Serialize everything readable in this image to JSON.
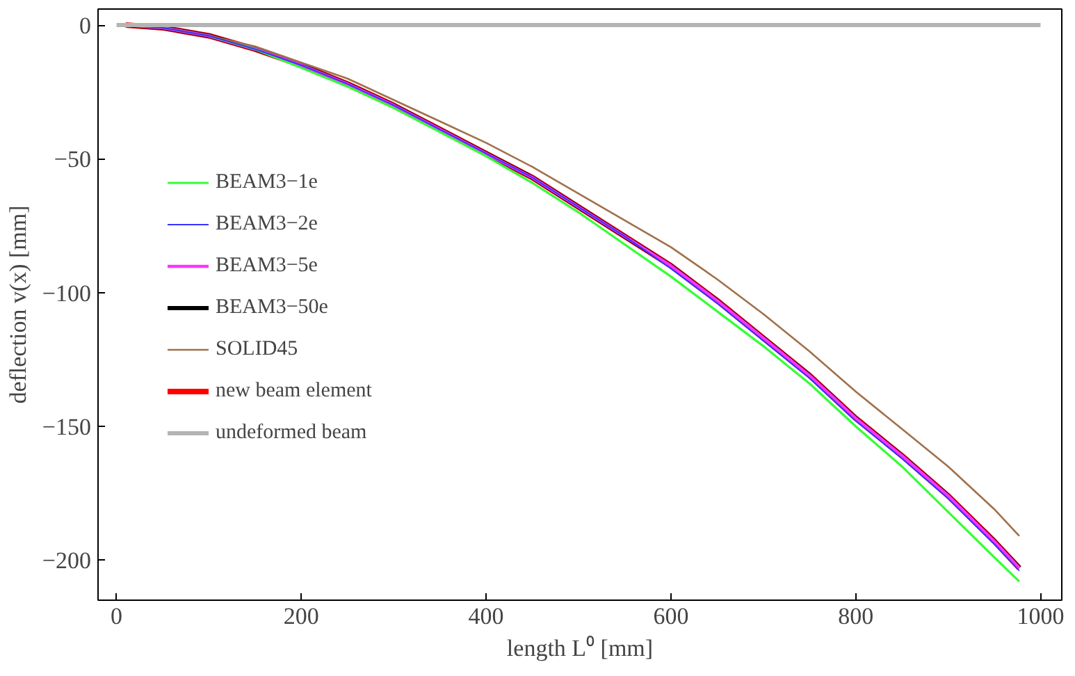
{
  "chart_data": {
    "type": "line",
    "xlabel": "length L⁰ [mm]",
    "ylabel": "deflection v(x) [mm]",
    "x": [
      10,
      50,
      100,
      150,
      200,
      250,
      300,
      350,
      400,
      450,
      500,
      550,
      600,
      650,
      700,
      750,
      800,
      850,
      900,
      950,
      977
    ],
    "series": [
      {
        "name": "BEAM3−1e",
        "color": "#33ff33",
        "values": [
          null,
          null,
          -4,
          -9,
          -16,
          -23,
          -31,
          -40,
          -49,
          -59,
          -70,
          -82,
          -94,
          -107,
          -120,
          -134,
          -150,
          -165,
          -182,
          -199,
          -208
        ]
      },
      {
        "name": "BEAM3−2e",
        "color": "#3333ff",
        "values": [
          0,
          -1,
          -4,
          -9,
          -15,
          -22,
          -30,
          -39,
          -48,
          -57,
          -68,
          -79,
          -91,
          -104,
          -118,
          -132,
          -148,
          -162,
          -177,
          -194,
          -204
        ]
      },
      {
        "name": "BEAM3−5e",
        "color": "#ff33ff",
        "values": [
          0,
          -1,
          -4,
          -9,
          -15,
          -22,
          -30,
          -39,
          -48,
          -57,
          -68,
          -79,
          -90,
          -103,
          -117,
          -131,
          -147,
          -161,
          -176,
          -193,
          -203
        ]
      },
      {
        "name": "BEAM3−50e",
        "color": "#000000",
        "values": [
          0,
          -1,
          -4,
          -9,
          -15,
          -22,
          -30,
          -39,
          -48,
          -57,
          -68,
          -79,
          -90,
          -103,
          -117,
          -131,
          -147,
          -161,
          -176,
          -193,
          -203
        ]
      },
      {
        "name": "SOLID45",
        "color": "#a0704a",
        "values": [
          0,
          -1,
          -4,
          -8,
          -14,
          -20,
          -28,
          -36,
          -44,
          -53,
          -63,
          -73,
          -83,
          -95,
          -108,
          -122,
          -137,
          -151,
          -165,
          -181,
          -191
        ]
      },
      {
        "name": "new beam element",
        "color": "#ff0000",
        "values": [
          0,
          -1,
          -4,
          -9,
          -15,
          -22,
          -30,
          -39,
          -48,
          -57,
          -68,
          -79,
          -90,
          -103,
          -117,
          -131,
          -147,
          -161,
          -176,
          -193,
          -203
        ]
      },
      {
        "name": "undeformed beam",
        "color": "#b4b4b4",
        "x": [
          0,
          1000
        ],
        "values": [
          0,
          0
        ]
      }
    ],
    "xlim": [
      -20,
      1023
    ],
    "ylim": [
      -215,
      6
    ],
    "xticks": [
      0,
      200,
      400,
      600,
      800,
      1000
    ],
    "yticks": [
      0,
      {
        "value": -50,
        "label": "−50"
      },
      {
        "value": -100,
        "label": "−100"
      },
      {
        "value": -150,
        "label": "−150"
      },
      {
        "value": -200,
        "label": "−200"
      }
    ],
    "grid": false,
    "legend": "left",
    "line_style": "solid"
  }
}
